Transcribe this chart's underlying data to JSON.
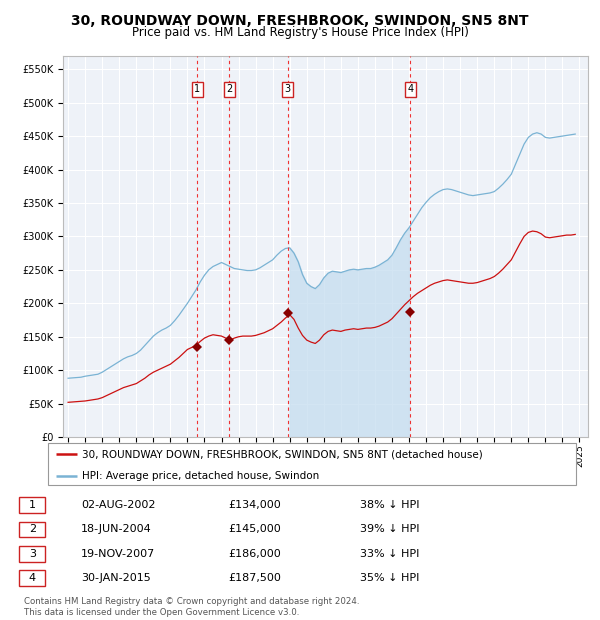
{
  "title": "30, ROUNDWAY DOWN, FRESHBROOK, SWINDON, SN5 8NT",
  "subtitle": "Price paid vs. HM Land Registry's House Price Index (HPI)",
  "title_fontsize": 10,
  "subtitle_fontsize": 8.5,
  "background_color": "#ffffff",
  "plot_bg_color": "#eef2f8",
  "grid_color": "#ffffff",
  "hpi_line_color": "#7ab3d4",
  "hpi_fill_color": "#c8dff0",
  "price_line_color": "#cc1111",
  "marker_color": "#880000",
  "vline_color": "#ee3333",
  "ylabel_values": [
    "£0",
    "£50K",
    "£100K",
    "£150K",
    "£200K",
    "£250K",
    "£300K",
    "£350K",
    "£400K",
    "£450K",
    "£500K",
    "£550K"
  ],
  "yticks": [
    0,
    50000,
    100000,
    150000,
    200000,
    250000,
    300000,
    350000,
    400000,
    450000,
    500000,
    550000
  ],
  "ylim": [
    0,
    570000
  ],
  "xlim_start": 1994.7,
  "xlim_end": 2025.5,
  "transactions": [
    {
      "label": "1",
      "date_num": 2002.58,
      "price": 134000,
      "text": "02-AUG-2002",
      "pct": "38% ↓ HPI"
    },
    {
      "label": "2",
      "date_num": 2004.46,
      "price": 145000,
      "text": "18-JUN-2004",
      "pct": "39% ↓ HPI"
    },
    {
      "label": "3",
      "date_num": 2007.89,
      "price": 186000,
      "text": "19-NOV-2007",
      "pct": "33% ↓ HPI"
    },
    {
      "label": "4",
      "date_num": 2015.08,
      "price": 187500,
      "text": "30-JAN-2015",
      "pct": "35% ↓ HPI"
    }
  ],
  "legend_entries": [
    "30, ROUNDWAY DOWN, FRESHBROOK, SWINDON, SN5 8NT (detached house)",
    "HPI: Average price, detached house, Swindon"
  ],
  "footer_text": "Contains HM Land Registry data © Crown copyright and database right 2024.\nThis data is licensed under the Open Government Licence v3.0.",
  "table_rows": [
    [
      "1",
      "02-AUG-2002",
      "£134,000",
      "38% ↓ HPI"
    ],
    [
      "2",
      "18-JUN-2004",
      "£145,000",
      "39% ↓ HPI"
    ],
    [
      "3",
      "19-NOV-2007",
      "£186,000",
      "33% ↓ HPI"
    ],
    [
      "4",
      "30-JAN-2015",
      "£187,500",
      "35% ↓ HPI"
    ]
  ],
  "hpi_data": {
    "years": [
      1995.0,
      1995.25,
      1995.5,
      1995.75,
      1996.0,
      1996.25,
      1996.5,
      1996.75,
      1997.0,
      1997.25,
      1997.5,
      1997.75,
      1998.0,
      1998.25,
      1998.5,
      1998.75,
      1999.0,
      1999.25,
      1999.5,
      1999.75,
      2000.0,
      2000.25,
      2000.5,
      2000.75,
      2001.0,
      2001.25,
      2001.5,
      2001.75,
      2002.0,
      2002.25,
      2002.5,
      2002.75,
      2003.0,
      2003.25,
      2003.5,
      2003.75,
      2004.0,
      2004.25,
      2004.5,
      2004.75,
      2005.0,
      2005.25,
      2005.5,
      2005.75,
      2006.0,
      2006.25,
      2006.5,
      2006.75,
      2007.0,
      2007.25,
      2007.5,
      2007.75,
      2008.0,
      2008.25,
      2008.5,
      2008.75,
      2009.0,
      2009.25,
      2009.5,
      2009.75,
      2010.0,
      2010.25,
      2010.5,
      2010.75,
      2011.0,
      2011.25,
      2011.5,
      2011.75,
      2012.0,
      2012.25,
      2012.5,
      2012.75,
      2013.0,
      2013.25,
      2013.5,
      2013.75,
      2014.0,
      2014.25,
      2014.5,
      2014.75,
      2015.0,
      2015.25,
      2015.5,
      2015.75,
      2016.0,
      2016.25,
      2016.5,
      2016.75,
      2017.0,
      2017.25,
      2017.5,
      2017.75,
      2018.0,
      2018.25,
      2018.5,
      2018.75,
      2019.0,
      2019.25,
      2019.5,
      2019.75,
      2020.0,
      2020.25,
      2020.5,
      2020.75,
      2021.0,
      2021.25,
      2021.5,
      2021.75,
      2022.0,
      2022.25,
      2022.5,
      2022.75,
      2023.0,
      2023.25,
      2023.5,
      2023.75,
      2024.0,
      2024.25,
      2024.5,
      2024.75
    ],
    "values": [
      88000,
      88500,
      89000,
      89500,
      91000,
      92000,
      93000,
      94000,
      97000,
      101000,
      105000,
      109000,
      113000,
      117000,
      120000,
      122000,
      125000,
      130000,
      137000,
      144000,
      151000,
      156000,
      160000,
      163000,
      167000,
      174000,
      182000,
      191000,
      200000,
      210000,
      220000,
      232000,
      242000,
      250000,
      255000,
      258000,
      261000,
      258000,
      255000,
      252000,
      251000,
      250000,
      249000,
      249000,
      250000,
      253000,
      257000,
      261000,
      265000,
      272000,
      278000,
      282000,
      283000,
      275000,
      262000,
      243000,
      230000,
      225000,
      222000,
      228000,
      238000,
      245000,
      248000,
      247000,
      246000,
      248000,
      250000,
      251000,
      250000,
      251000,
      252000,
      252000,
      254000,
      257000,
      261000,
      265000,
      272000,
      283000,
      295000,
      305000,
      313000,
      323000,
      333000,
      343000,
      351000,
      358000,
      363000,
      367000,
      370000,
      371000,
      370000,
      368000,
      366000,
      364000,
      362000,
      361000,
      362000,
      363000,
      364000,
      365000,
      367000,
      372000,
      378000,
      385000,
      393000,
      408000,
      423000,
      438000,
      448000,
      453000,
      455000,
      453000,
      448000,
      447000,
      448000,
      449000,
      450000,
      451000,
      452000,
      453000
    ]
  },
  "price_data": {
    "years": [
      1995.0,
      1995.25,
      1995.5,
      1995.75,
      1996.0,
      1996.25,
      1996.5,
      1996.75,
      1997.0,
      1997.25,
      1997.5,
      1997.75,
      1998.0,
      1998.25,
      1998.5,
      1998.75,
      1999.0,
      1999.25,
      1999.5,
      1999.75,
      2000.0,
      2000.25,
      2000.5,
      2000.75,
      2001.0,
      2001.25,
      2001.5,
      2001.75,
      2002.0,
      2002.25,
      2002.5,
      2002.75,
      2003.0,
      2003.25,
      2003.5,
      2003.75,
      2004.0,
      2004.25,
      2004.5,
      2004.75,
      2005.0,
      2005.25,
      2005.5,
      2005.75,
      2006.0,
      2006.25,
      2006.5,
      2006.75,
      2007.0,
      2007.25,
      2007.5,
      2007.75,
      2008.0,
      2008.25,
      2008.5,
      2008.75,
      2009.0,
      2009.25,
      2009.5,
      2009.75,
      2010.0,
      2010.25,
      2010.5,
      2010.75,
      2011.0,
      2011.25,
      2011.5,
      2011.75,
      2012.0,
      2012.25,
      2012.5,
      2012.75,
      2013.0,
      2013.25,
      2013.5,
      2013.75,
      2014.0,
      2014.25,
      2014.5,
      2014.75,
      2015.0,
      2015.25,
      2015.5,
      2015.75,
      2016.0,
      2016.25,
      2016.5,
      2016.75,
      2017.0,
      2017.25,
      2017.5,
      2017.75,
      2018.0,
      2018.25,
      2018.5,
      2018.75,
      2019.0,
      2019.25,
      2019.5,
      2019.75,
      2020.0,
      2020.25,
      2020.5,
      2020.75,
      2021.0,
      2021.25,
      2021.5,
      2021.75,
      2022.0,
      2022.25,
      2022.5,
      2022.75,
      2023.0,
      2023.25,
      2023.5,
      2023.75,
      2024.0,
      2024.25,
      2024.5,
      2024.75
    ],
    "values": [
      52000,
      52500,
      53000,
      53500,
      54000,
      55000,
      56000,
      57000,
      59000,
      62000,
      65000,
      68000,
      71000,
      74000,
      76000,
      78000,
      80000,
      84000,
      88000,
      93000,
      97000,
      100000,
      103000,
      106000,
      109000,
      114000,
      119000,
      125000,
      131000,
      134000,
      137000,
      143000,
      148000,
      151000,
      153000,
      152000,
      151000,
      148000,
      145000,
      148000,
      150000,
      151000,
      151000,
      151000,
      152000,
      154000,
      156000,
      159000,
      162000,
      167000,
      172000,
      178000,
      183000,
      176000,
      163000,
      152000,
      145000,
      142000,
      140000,
      145000,
      153000,
      158000,
      160000,
      159000,
      158000,
      160000,
      161000,
      162000,
      161000,
      162000,
      163000,
      163000,
      164000,
      166000,
      169000,
      172000,
      177000,
      184000,
      191000,
      198000,
      204000,
      210000,
      215000,
      219000,
      223000,
      227000,
      230000,
      232000,
      234000,
      235000,
      234000,
      233000,
      232000,
      231000,
      230000,
      230000,
      231000,
      233000,
      235000,
      237000,
      240000,
      245000,
      251000,
      258000,
      265000,
      277000,
      289000,
      300000,
      306000,
      308000,
      307000,
      304000,
      299000,
      298000,
      299000,
      300000,
      301000,
      302000,
      302000,
      303000
    ]
  }
}
